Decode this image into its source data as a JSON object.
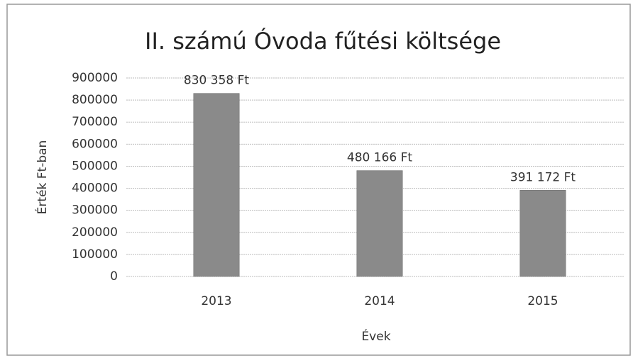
{
  "chart_data": {
    "type": "bar",
    "title": "II. számú Óvoda fűtési költsége",
    "x_label": "Évek",
    "y_label": "Érték Ft-ban",
    "categories": [
      "2013",
      "2014",
      "2015"
    ],
    "values": [
      830358,
      480166,
      391172
    ],
    "value_labels": [
      "830 358 Ft",
      "480 166 Ft",
      "391 172 Ft"
    ],
    "color": "#8a8a8a",
    "ylim": [
      0,
      900000
    ],
    "yticks": [
      0,
      100000,
      200000,
      300000,
      400000,
      500000,
      600000,
      700000,
      800000,
      900000
    ],
    "grid": true
  }
}
